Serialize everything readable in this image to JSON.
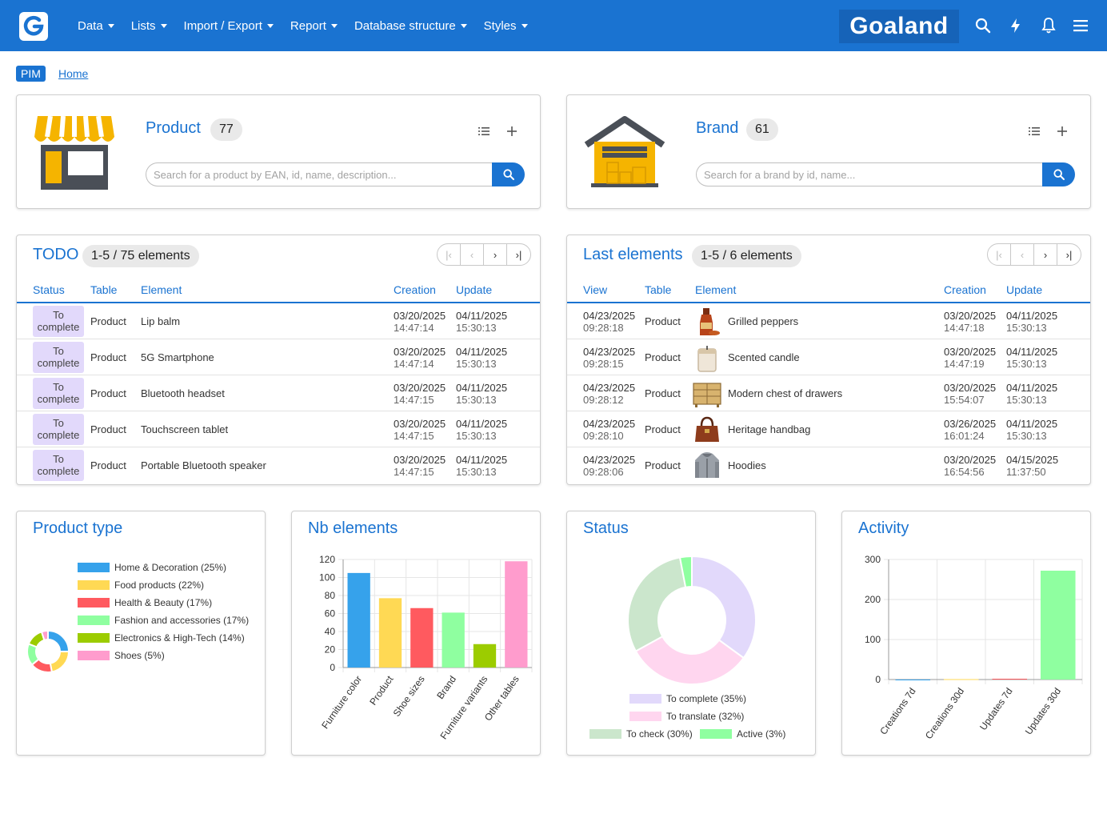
{
  "nav": {
    "items": [
      {
        "label": "Data"
      },
      {
        "label": "Lists"
      },
      {
        "label": "Import / Export"
      },
      {
        "label": "Report"
      },
      {
        "label": "Database structure"
      },
      {
        "label": "Styles"
      }
    ],
    "brand": "Goaland",
    "icons": [
      "search-icon",
      "lightning-icon",
      "bell-icon",
      "menu-icon"
    ]
  },
  "breadcrumb": {
    "badge": "PIM",
    "home": "Home"
  },
  "product_card": {
    "title": "Product",
    "count": "77",
    "search_placeholder": "Search for a product by EAN, id, name, description..."
  },
  "brand_card": {
    "title": "Brand",
    "count": "61",
    "search_placeholder": "Search for a brand by id, name..."
  },
  "todo": {
    "title": "TODO",
    "range": "1-5 / 75 elements",
    "headers": {
      "status": "Status",
      "table": "Table",
      "element": "Element",
      "creation": "Creation",
      "update": "Update"
    },
    "rows": [
      {
        "status1": "To",
        "status2": "complete",
        "table": "Product",
        "element": "Lip balm",
        "c_date": "03/20/2025",
        "c_time": "14:47:14",
        "u_date": "04/11/2025",
        "u_time": "15:30:13"
      },
      {
        "status1": "To",
        "status2": "complete",
        "table": "Product",
        "element": "5G Smartphone",
        "c_date": "03/20/2025",
        "c_time": "14:47:14",
        "u_date": "04/11/2025",
        "u_time": "15:30:13"
      },
      {
        "status1": "To",
        "status2": "complete",
        "table": "Product",
        "element": "Bluetooth headset",
        "c_date": "03/20/2025",
        "c_time": "14:47:15",
        "u_date": "04/11/2025",
        "u_time": "15:30:13"
      },
      {
        "status1": "To",
        "status2": "complete",
        "table": "Product",
        "element": "Touchscreen tablet",
        "c_date": "03/20/2025",
        "c_time": "14:47:15",
        "u_date": "04/11/2025",
        "u_time": "15:30:13"
      },
      {
        "status1": "To",
        "status2": "complete",
        "table": "Product",
        "element": "Portable Bluetooth speaker",
        "c_date": "03/20/2025",
        "c_time": "14:47:15",
        "u_date": "04/11/2025",
        "u_time": "15:30:13"
      }
    ]
  },
  "last": {
    "title": "Last elements",
    "range": "1-5 / 6 elements",
    "headers": {
      "view": "View",
      "table": "Table",
      "element": "Element",
      "creation": "Creation",
      "update": "Update"
    },
    "rows": [
      {
        "v_date": "04/23/2025",
        "v_time": "09:28:18",
        "table": "Product",
        "element": "Grilled peppers",
        "thumb": "bottle",
        "c_date": "03/20/2025",
        "c_time": "14:47:18",
        "u_date": "04/11/2025",
        "u_time": "15:30:13"
      },
      {
        "v_date": "04/23/2025",
        "v_time": "09:28:15",
        "table": "Product",
        "element": "Scented candle",
        "thumb": "candle",
        "c_date": "03/20/2025",
        "c_time": "14:47:19",
        "u_date": "04/11/2025",
        "u_time": "15:30:13"
      },
      {
        "v_date": "04/23/2025",
        "v_time": "09:28:12",
        "table": "Product",
        "element": "Modern chest of drawers",
        "thumb": "drawers",
        "c_date": "03/20/2025",
        "c_time": "15:54:07",
        "u_date": "04/11/2025",
        "u_time": "15:30:13"
      },
      {
        "v_date": "04/23/2025",
        "v_time": "09:28:10",
        "table": "Product",
        "element": "Heritage handbag",
        "thumb": "handbag",
        "c_date": "03/26/2025",
        "c_time": "16:01:24",
        "u_date": "04/11/2025",
        "u_time": "15:30:13"
      },
      {
        "v_date": "04/23/2025",
        "v_time": "09:28:06",
        "table": "Product",
        "element": "Hoodies",
        "thumb": "hoodie",
        "c_date": "03/20/2025",
        "c_time": "16:54:56",
        "u_date": "04/15/2025",
        "u_time": "11:37:50"
      }
    ]
  },
  "chart_data": [
    {
      "type": "pie",
      "title": "Product type",
      "donut": true,
      "legend": "right",
      "categories": [
        "Home & Decoration (25%)",
        "Food products (22%)",
        "Health & Beauty (17%)",
        "Fashion and accessories (17%)",
        "Electronics & High-Tech (14%)",
        "Shoes (5%)"
      ],
      "values": [
        25,
        22,
        17,
        17,
        14,
        5
      ],
      "colors": [
        "#36a2eb",
        "#ffd954",
        "#ff5a5f",
        "#8fffa0",
        "#9ccc00",
        "#ff9ccd"
      ]
    },
    {
      "type": "bar",
      "title": "Nb elements",
      "categories": [
        "Furniture color",
        "Product",
        "Shoe sizes",
        "Brand",
        "Furniture variants",
        "Other tables"
      ],
      "values": [
        105,
        77,
        66,
        61,
        26,
        118
      ],
      "colors": [
        "#36a2eb",
        "#ffd954",
        "#ff5a5f",
        "#8fffa0",
        "#9ccc00",
        "#ff9ccd"
      ],
      "ylim": [
        0,
        120
      ],
      "yticks": [
        0,
        20,
        40,
        60,
        80,
        100,
        120
      ],
      "grid": true
    },
    {
      "type": "pie",
      "title": "Status",
      "donut": true,
      "legend": "bottom",
      "categories": [
        "To complete (35%)",
        "To translate (32%)",
        "To check (30%)",
        "Active (3%)"
      ],
      "values": [
        35,
        32,
        30,
        3
      ],
      "colors": [
        "#e2d9fb",
        "#ffd6ef",
        "#cbe6cc",
        "#8fffa0"
      ]
    },
    {
      "type": "bar",
      "title": "Activity",
      "categories": [
        "Creations 7d",
        "Creations 30d",
        "Updates 7d",
        "Updates 30d"
      ],
      "values": [
        0,
        1,
        2,
        272
      ],
      "colors": [
        "#36a2eb",
        "#ffd954",
        "#ff5a5f",
        "#8fffa0"
      ],
      "ylim": [
        0,
        300
      ],
      "yticks": [
        0,
        100,
        200,
        300
      ],
      "grid": true
    }
  ]
}
